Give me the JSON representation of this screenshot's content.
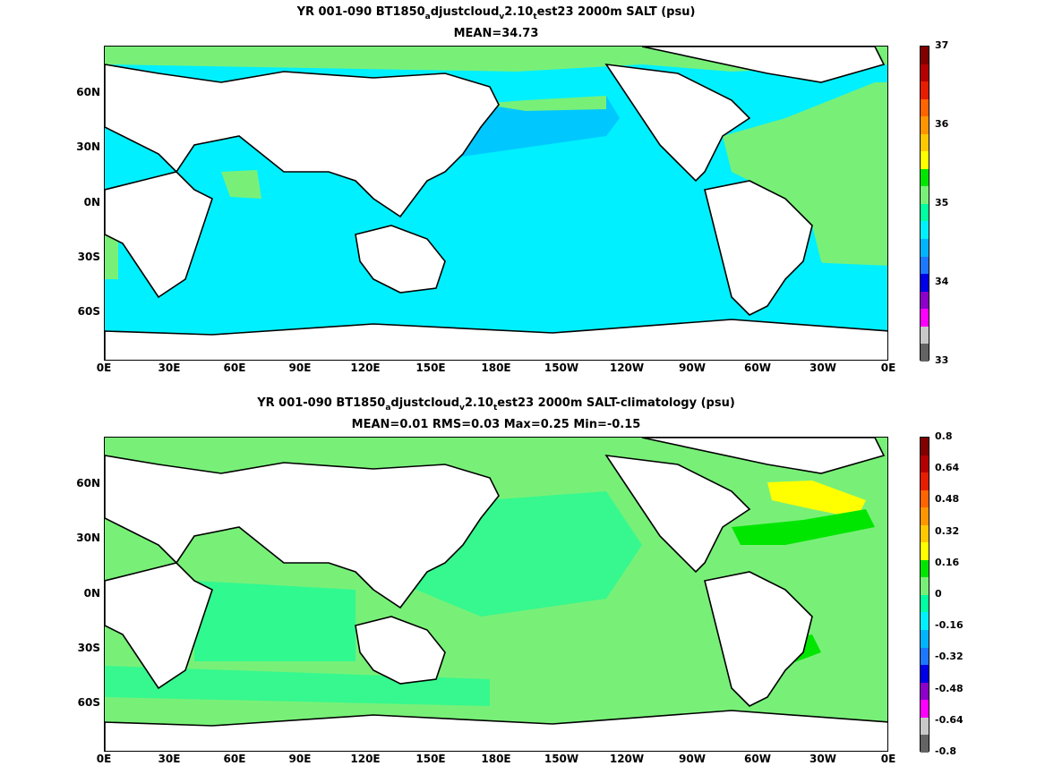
{
  "top": {
    "title_prefix": "YR 001-090 BT1850",
    "title_sub1": "a",
    "title_mid1": "djustcloud",
    "title_sub2": "v",
    "title_mid2": "2.10",
    "title_sub3": "t",
    "title_suffix": "est23 2000m SALT (psu)",
    "subtitle": "MEAN=34.73",
    "colorbar_labels": [
      "37",
      "36",
      "35",
      "34",
      "33"
    ],
    "colorbar_colors": [
      "#800000",
      "#b40000",
      "#e61e00",
      "#ff6400",
      "#ff9600",
      "#ffc800",
      "#ffff00",
      "#00e600",
      "#78f078",
      "#00ffa0",
      "#00f0ff",
      "#00b4ff",
      "#1e78ff",
      "#0000e6",
      "#8c00c8",
      "#ff00ff",
      "#c8c8c8",
      "#646464"
    ]
  },
  "bottom": {
    "title_prefix": "YR 001-090 BT1850",
    "title_sub1": "a",
    "title_mid1": "djustcloud",
    "title_sub2": "v",
    "title_mid2": "2.10",
    "title_sub3": "t",
    "title_suffix": "est23 2000m SALT-climatology (psu)",
    "subtitle": "MEAN=0.01   RMS=0.03   Max=0.25   Min=-0.15",
    "colorbar_labels": [
      "0.8",
      "0.64",
      "0.48",
      "0.32",
      "0.16",
      "0",
      "-0.16",
      "-0.32",
      "-0.48",
      "-0.64",
      "-0.8"
    ],
    "colorbar_colors": [
      "#800000",
      "#b40000",
      "#e61e00",
      "#ff6400",
      "#ff9600",
      "#ffc800",
      "#ffff00",
      "#00e600",
      "#78f078",
      "#00ffa0",
      "#00f0ff",
      "#00b4ff",
      "#1e78ff",
      "#0000e6",
      "#8c00c8",
      "#ff00ff",
      "#c8c8c8",
      "#646464"
    ]
  },
  "lat_labels": [
    "60N",
    "30N",
    "0N",
    "30S",
    "60S"
  ],
  "lon_labels": [
    "0E",
    "30E",
    "60E",
    "90E",
    "120E",
    "150E",
    "180E",
    "150W",
    "120W",
    "90W",
    "60W",
    "30W",
    "0E"
  ],
  "colors": {
    "land": "#ffffff",
    "coast": "#000000",
    "ocean_top": "#00f0ff",
    "ocean_bottom": "#78f078"
  }
}
